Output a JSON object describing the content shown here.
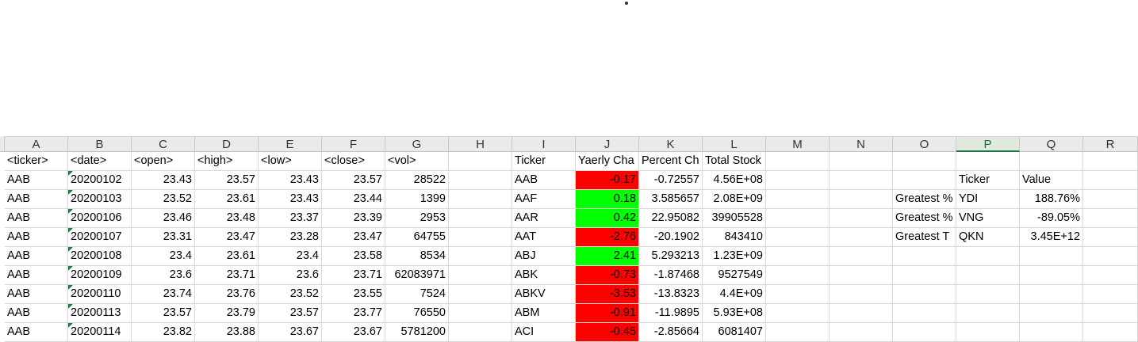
{
  "columns": [
    "A",
    "B",
    "C",
    "D",
    "E",
    "F",
    "G",
    "H",
    "I",
    "J",
    "K",
    "L",
    "M",
    "N",
    "O",
    "P",
    "Q",
    "R"
  ],
  "selected_column": "P",
  "colors": {
    "negative": "#ff0000",
    "positive": "#00ff00",
    "indicator": "#1f7a3a"
  },
  "raw_headers": [
    "<ticker>",
    "<date>",
    "<open>",
    "<high>",
    "<low>",
    "<close>",
    "<vol>"
  ],
  "raw_rows": [
    [
      "AAB",
      "20200102",
      "23.43",
      "23.57",
      "23.43",
      "23.57",
      "28522"
    ],
    [
      "AAB",
      "20200103",
      "23.52",
      "23.61",
      "23.43",
      "23.44",
      "1399"
    ],
    [
      "AAB",
      "20200106",
      "23.46",
      "23.48",
      "23.37",
      "23.39",
      "2953"
    ],
    [
      "AAB",
      "20200107",
      "23.31",
      "23.47",
      "23.28",
      "23.47",
      "64755"
    ],
    [
      "AAB",
      "20200108",
      "23.4",
      "23.61",
      "23.4",
      "23.58",
      "8534"
    ],
    [
      "AAB",
      "20200109",
      "23.6",
      "23.71",
      "23.6",
      "23.71",
      "62083971"
    ],
    [
      "AAB",
      "20200110",
      "23.74",
      "23.76",
      "23.52",
      "23.55",
      "7524"
    ],
    [
      "AAB",
      "20200113",
      "23.57",
      "23.79",
      "23.57",
      "23.77",
      "76550"
    ],
    [
      "AAB",
      "20200114",
      "23.82",
      "23.88",
      "23.67",
      "23.67",
      "5781200"
    ]
  ],
  "summary_headers": [
    "Ticker",
    "Yaerly Cha",
    "Percent Ch",
    "Total Stock"
  ],
  "summary_rows": [
    {
      "ticker": "AAB",
      "change": "-0.17",
      "percent": "-0.72557",
      "volume": "4.56E+08",
      "sign": "neg"
    },
    {
      "ticker": "AAF",
      "change": "0.18",
      "percent": "3.585657",
      "volume": "2.08E+09",
      "sign": "pos"
    },
    {
      "ticker": "AAR",
      "change": "0.42",
      "percent": "22.95082",
      "volume": "39905528",
      "sign": "pos"
    },
    {
      "ticker": "AAT",
      "change": "-2.76",
      "percent": "-20.1902",
      "volume": "843410",
      "sign": "neg"
    },
    {
      "ticker": "ABJ",
      "change": "2.41",
      "percent": "5.293213",
      "volume": "1.23E+09",
      "sign": "pos"
    },
    {
      "ticker": "ABK",
      "change": "-0.73",
      "percent": "-1.87468",
      "volume": "9527549",
      "sign": "neg"
    },
    {
      "ticker": "ABKV",
      "change": "-3.53",
      "percent": "-13.8323",
      "volume": "4.4E+09",
      "sign": "neg"
    },
    {
      "ticker": "ABM",
      "change": "-0.91",
      "percent": "-11.9895",
      "volume": "5.93E+08",
      "sign": "neg"
    },
    {
      "ticker": "ACI",
      "change": "-0.45",
      "percent": "-2.85664",
      "volume": "6081407",
      "sign": "neg"
    }
  ],
  "greatest": {
    "headers": [
      "Ticker",
      "Value"
    ],
    "rows": [
      {
        "label": "Greatest %",
        "ticker": "YDI",
        "value": "188.76%"
      },
      {
        "label": "Greatest %",
        "ticker": "VNG",
        "value": "-89.05%"
      },
      {
        "label": "Greatest T",
        "ticker": "QKN",
        "value": "3.45E+12"
      }
    ]
  }
}
